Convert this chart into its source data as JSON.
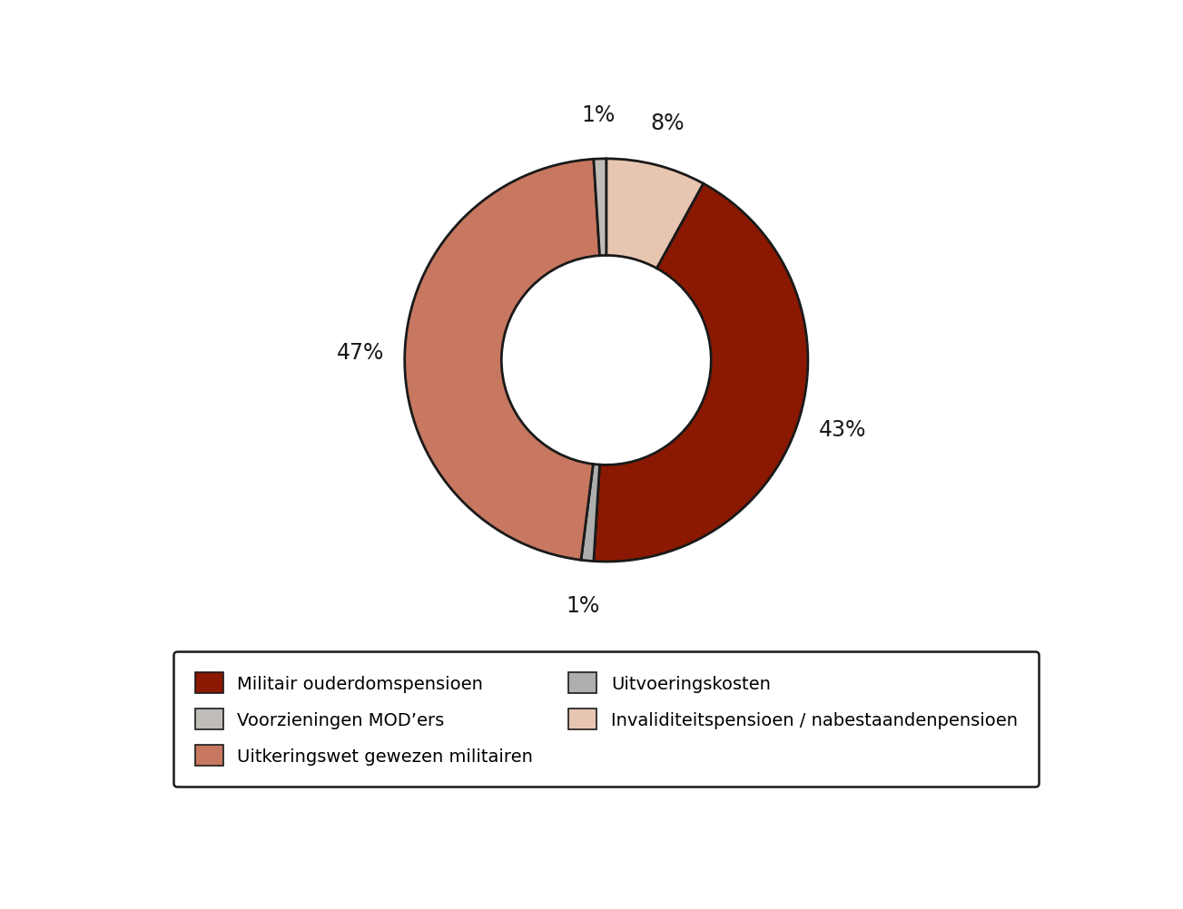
{
  "slices": [
    {
      "label": "Invaliditeitspensioen / nabestaandenpensioen",
      "value": 8,
      "color": "#E8C5B0",
      "pct": "8%"
    },
    {
      "label": "Militair ouderdomspensioen",
      "value": 43,
      "color": "#8B1800",
      "pct": "43%"
    },
    {
      "label": "Uitvoeringskosten",
      "value": 1,
      "color": "#AEAEAE",
      "pct": "1%"
    },
    {
      "label": "Uitkeringswet gewezen militairen",
      "value": 47,
      "color": "#C87860",
      "pct": "47%"
    },
    {
      "label": "Voorzieningen MOD’ers",
      "value": 1,
      "color": "#C0BDB8",
      "pct": "1%"
    }
  ],
  "wedge_edge_color": "#1a1a1a",
  "wedge_edge_width": 2.0,
  "background_color": "#ffffff",
  "label_fontsize": 17,
  "legend_fontsize": 14,
  "fig_width": 13.03,
  "fig_height": 10.03,
  "dpi": 100,
  "start_angle": 90,
  "legend_items": [
    {
      "label": "Militair ouderdomspensioen",
      "color": "#8B1800"
    },
    {
      "label": "Voorzieningen MOD’ers",
      "color": "#C0BDB8"
    },
    {
      "label": "Uitkeringswet gewezen militairen",
      "color": "#C87860"
    },
    {
      "label": "Uitvoeringskosten",
      "color": "#AEAEAE"
    },
    {
      "label": "Invaliditeitspensioen / nabestaandenpensioen",
      "color": "#E8C5B0"
    }
  ]
}
